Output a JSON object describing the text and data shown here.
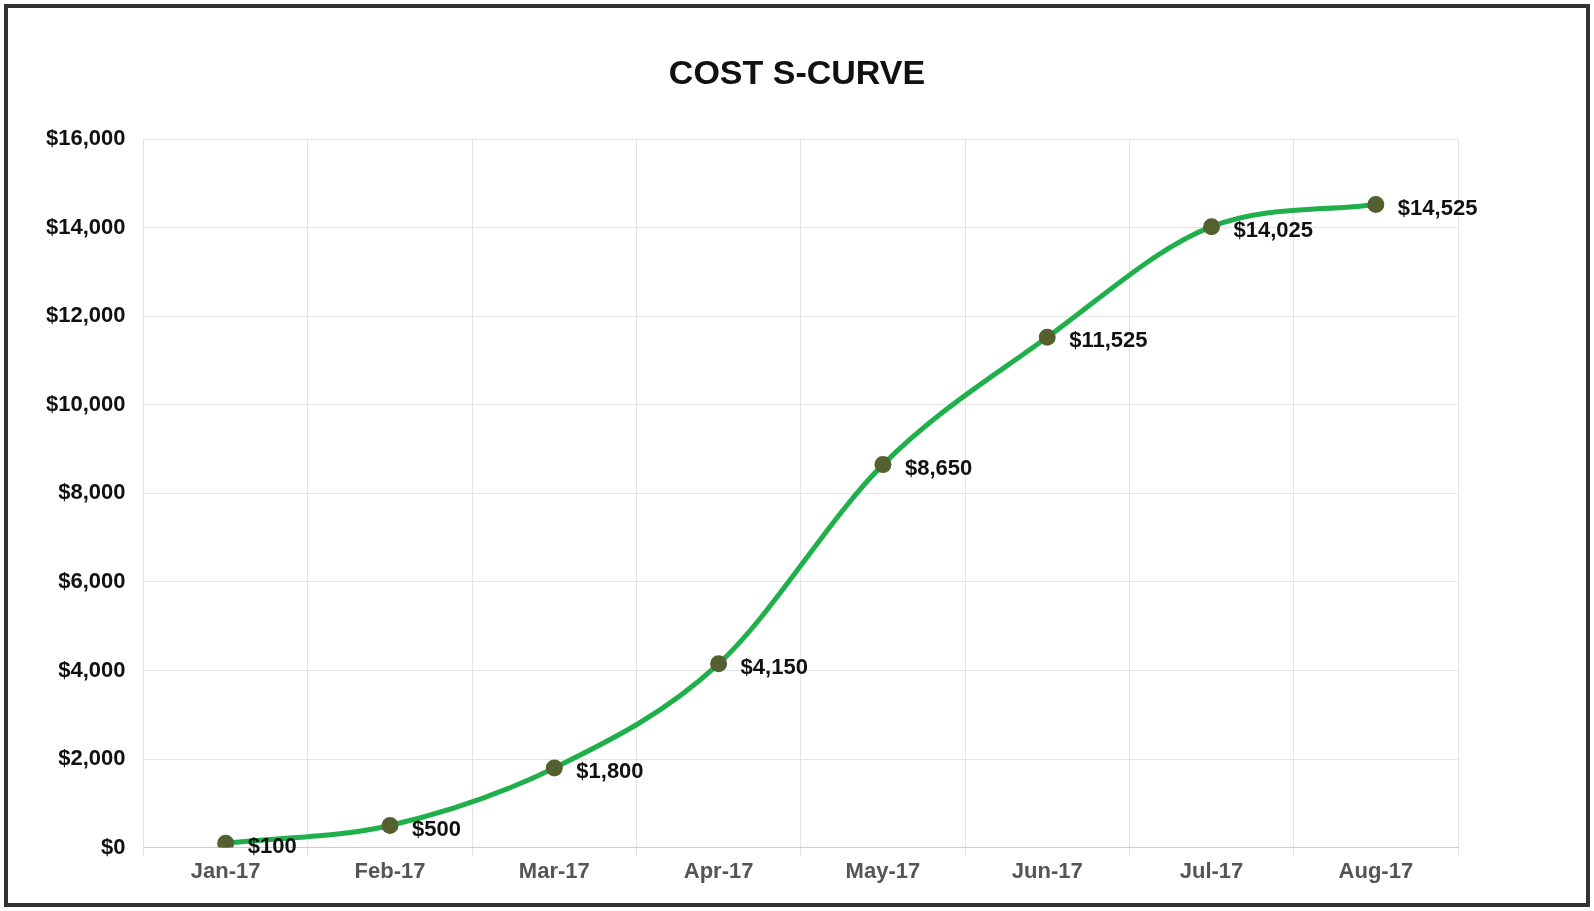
{
  "chart_data": {
    "type": "line",
    "title": "COST S-CURVE",
    "categories": [
      "Jan-17",
      "Feb-17",
      "Mar-17",
      "Apr-17",
      "May-17",
      "Jun-17",
      "Jul-17",
      "Aug-17"
    ],
    "series": [
      {
        "color": "#1fb04b",
        "values": [
          100,
          500,
          1800,
          4150,
          8650,
          11525,
          14025,
          14525
        ],
        "value_labels": [
          "$100",
          "$500",
          "$1,800",
          "$4,150",
          "$8,650",
          "$11,525",
          "$14,025",
          "$14,525"
        ]
      }
    ],
    "ylim": [
      0,
      16000
    ],
    "yticks": [
      {
        "value": 0,
        "label": "$0"
      },
      {
        "value": 2000,
        "label": "$2,000"
      },
      {
        "value": 4000,
        "label": "$4,000"
      },
      {
        "value": 6000,
        "label": "$6,000"
      },
      {
        "value": 8000,
        "label": "$8,000"
      },
      {
        "value": 10000,
        "label": "$10,000"
      },
      {
        "value": 12000,
        "label": "$12,000"
      },
      {
        "value": 14000,
        "label": "$14,000"
      },
      {
        "value": 16000,
        "label": "$16,000"
      }
    ],
    "grid": true,
    "legend": false,
    "marker": "circle",
    "line_style": "solid"
  }
}
